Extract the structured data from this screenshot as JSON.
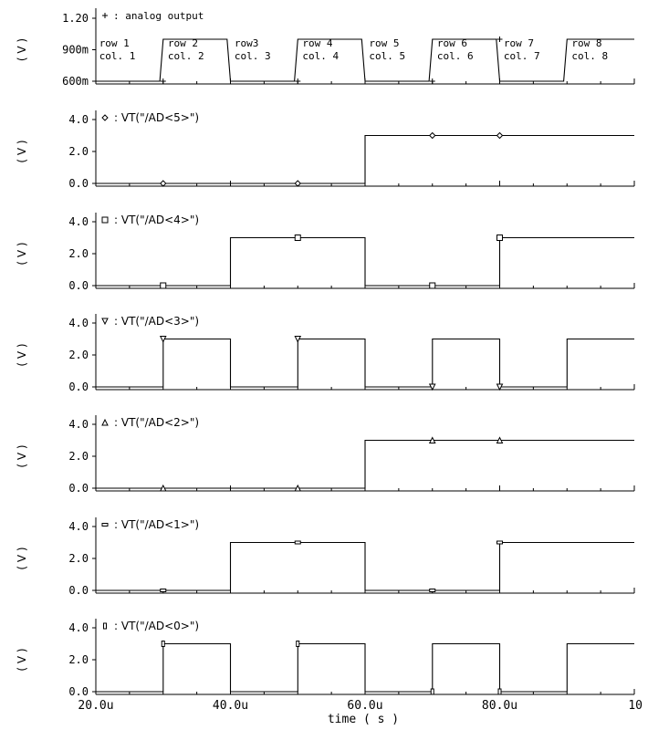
{
  "chart_data": {
    "type": "line",
    "xlabel": "time ( s )",
    "x_ticks": [
      "20.0u",
      "40.0u",
      "60.0u",
      "80.0u",
      "10"
    ],
    "xlim": [
      20,
      100
    ],
    "grid": false,
    "panels": [
      {
        "name": "analog output",
        "marker": "cross",
        "ylabel": "( V )",
        "y_ticks": [
          "1.20",
          "900m",
          "600m"
        ],
        "y_tick_values": [
          1.2,
          0.9,
          0.6
        ],
        "ylim": [
          0.6,
          1.2
        ],
        "x": [
          20,
          29.5,
          30,
          39.5,
          40,
          49.5,
          50,
          59.5,
          60,
          69.5,
          70,
          79.5,
          80,
          89.5,
          90,
          100
        ],
        "y": [
          0.6,
          0.6,
          1.0,
          1.0,
          0.6,
          0.6,
          1.0,
          1.0,
          0.6,
          0.6,
          1.0,
          1.0,
          0.6,
          0.6,
          1.0,
          1.0
        ],
        "marker_x": [
          30,
          50,
          70,
          80
        ],
        "marker_y": [
          0.6,
          0.6,
          0.6,
          1.0
        ],
        "annotations": [
          {
            "x": 20.5,
            "lines": [
              "row 1",
              "col. 1"
            ]
          },
          {
            "x": 30.7,
            "lines": [
              "row 2",
              "col. 2"
            ]
          },
          {
            "x": 40.6,
            "lines": [
              "row3",
              "col. 3"
            ]
          },
          {
            "x": 50.7,
            "lines": [
              "row 4",
              "col. 4"
            ]
          },
          {
            "x": 60.6,
            "lines": [
              "row 5",
              "col. 5"
            ]
          },
          {
            "x": 70.7,
            "lines": [
              "row 6",
              "col. 6"
            ]
          },
          {
            "x": 80.6,
            "lines": [
              "row 7",
              "col. 7"
            ]
          },
          {
            "x": 90.7,
            "lines": [
              "row 8",
              "col. 8"
            ]
          }
        ]
      },
      {
        "name": "VT(\"/AD<5>\")",
        "marker": "diamond",
        "ylabel": "( V )",
        "y_ticks": [
          "4.0",
          "2.0",
          "0.0"
        ],
        "y_tick_values": [
          4,
          2,
          0
        ],
        "ylim": [
          0,
          4
        ],
        "x": [
          20,
          60,
          60,
          100
        ],
        "y": [
          0,
          0,
          3.0,
          3.0
        ],
        "marker_x": [
          30,
          50,
          70,
          80
        ],
        "marker_y": [
          0,
          0,
          3.0,
          3.0
        ]
      },
      {
        "name": "VT(\"/AD<4>\")",
        "marker": "square",
        "ylabel": "( V )",
        "y_ticks": [
          "4.0",
          "2.0",
          "0.0"
        ],
        "y_tick_values": [
          4,
          2,
          0
        ],
        "ylim": [
          0,
          4
        ],
        "x": [
          20,
          40,
          40,
          60,
          60,
          80,
          80,
          100
        ],
        "y": [
          0,
          0,
          3.0,
          3.0,
          0,
          0,
          3.0,
          3.0
        ],
        "marker_x": [
          30,
          50,
          70,
          80
        ],
        "marker_y": [
          0,
          3.0,
          0,
          3.0
        ]
      },
      {
        "name": "VT(\"/AD<3>\")",
        "marker": "triangle-down",
        "ylabel": "( V )",
        "y_ticks": [
          "4.0",
          "2.0",
          "0.0"
        ],
        "y_tick_values": [
          4,
          2,
          0
        ],
        "ylim": [
          0,
          4
        ],
        "x": [
          20,
          30,
          30,
          40,
          40,
          50,
          50,
          60,
          60,
          70,
          70,
          80,
          80,
          90,
          90,
          100
        ],
        "y": [
          0,
          0,
          3.0,
          3.0,
          0,
          0,
          3.0,
          3.0,
          0,
          0,
          3.0,
          3.0,
          0,
          0,
          3.0,
          3.0
        ],
        "marker_x": [
          30,
          50,
          70,
          80
        ],
        "marker_y": [
          3.0,
          3.0,
          0,
          0
        ]
      },
      {
        "name": "VT(\"/AD<2>\")",
        "marker": "triangle-up",
        "ylabel": "( V )",
        "y_ticks": [
          "4.0",
          "2.0",
          "0.0"
        ],
        "y_tick_values": [
          4,
          2,
          0
        ],
        "ylim": [
          0,
          4
        ],
        "x": [
          20,
          60,
          60,
          100
        ],
        "y": [
          0,
          0,
          3.0,
          3.0
        ],
        "marker_x": [
          30,
          50,
          70,
          80
        ],
        "marker_y": [
          0,
          0,
          3.0,
          3.0
        ]
      },
      {
        "name": "VT(\"/AD<1>\")",
        "marker": "dash",
        "ylabel": "( V )",
        "y_ticks": [
          "4.0",
          "2.0",
          "0.0"
        ],
        "y_tick_values": [
          4,
          2,
          0
        ],
        "ylim": [
          0,
          4
        ],
        "x": [
          20,
          40,
          40,
          60,
          60,
          80,
          80,
          100
        ],
        "y": [
          0,
          0,
          3.0,
          3.0,
          0,
          0,
          3.0,
          3.0
        ],
        "marker_x": [
          30,
          50,
          70,
          80
        ],
        "marker_y": [
          0,
          3.0,
          0,
          3.0
        ]
      },
      {
        "name": "VT(\"/AD<0>\")",
        "marker": "bar",
        "ylabel": "( V )",
        "y_ticks": [
          "4.0",
          "2.0",
          "0.0"
        ],
        "y_tick_values": [
          4,
          2,
          0
        ],
        "ylim": [
          0,
          4
        ],
        "x": [
          20,
          30,
          30,
          40,
          40,
          50,
          50,
          60,
          60,
          70,
          70,
          80,
          80,
          90,
          90,
          100
        ],
        "y": [
          0,
          0,
          3.0,
          3.0,
          0,
          0,
          3.0,
          3.0,
          0,
          0,
          3.0,
          3.0,
          0,
          0,
          3.0,
          3.0
        ],
        "marker_x": [
          30,
          50,
          70,
          80
        ],
        "marker_y": [
          3.0,
          3.0,
          0,
          0
        ]
      }
    ]
  }
}
